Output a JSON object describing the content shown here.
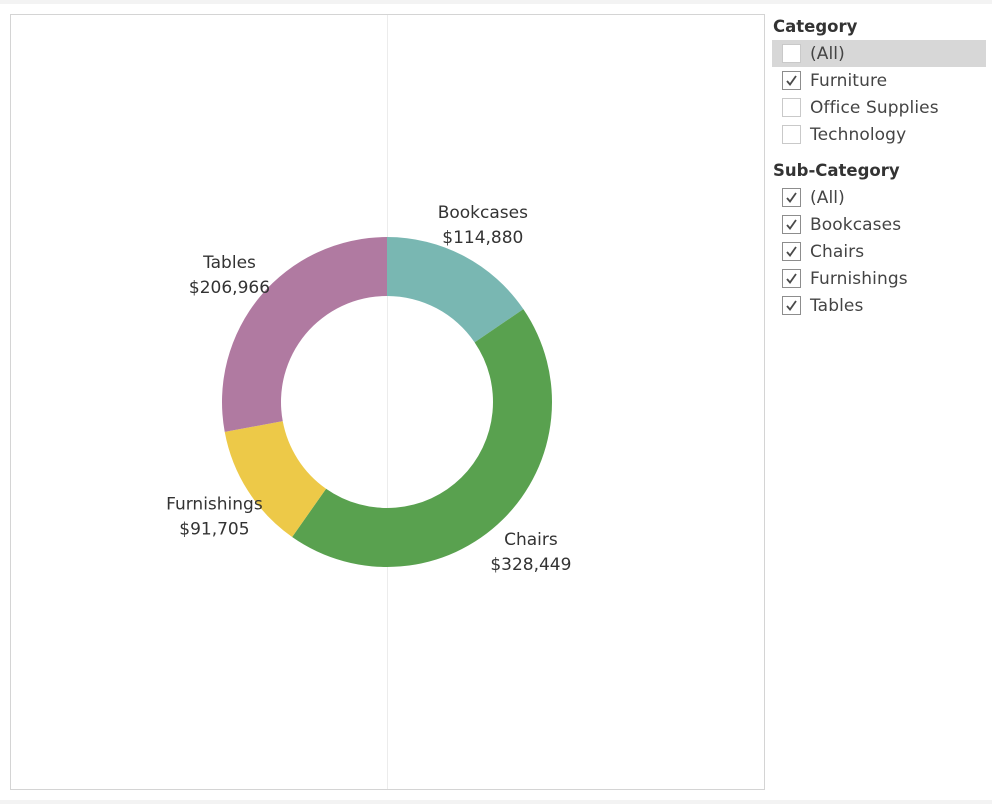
{
  "chart_data": {
    "type": "pie",
    "variant": "donut",
    "slices": [
      {
        "label": "Bookcases",
        "value": 114880,
        "value_label": "$114,880",
        "color": "#79B7B2"
      },
      {
        "label": "Chairs",
        "value": 328449,
        "value_label": "$328,449",
        "color": "#59A14F"
      },
      {
        "label": "Furnishings",
        "value": 91705,
        "value_label": "$91,705",
        "color": "#EDC948"
      },
      {
        "label": "Tables",
        "value": 206966,
        "value_label": "$206,966",
        "color": "#B07AA1"
      }
    ],
    "legend": "none"
  },
  "filters": {
    "category": {
      "title": "Category",
      "items": [
        {
          "label": "(All)",
          "checked": false,
          "highlighted": true
        },
        {
          "label": "Furniture",
          "checked": true,
          "highlighted": false
        },
        {
          "label": "Office Supplies",
          "checked": false,
          "highlighted": false
        },
        {
          "label": "Technology",
          "checked": false,
          "highlighted": false
        }
      ]
    },
    "sub_category": {
      "title": "Sub-Category",
      "items": [
        {
          "label": "(All)",
          "checked": true,
          "highlighted": false
        },
        {
          "label": "Bookcases",
          "checked": true,
          "highlighted": false
        },
        {
          "label": "Chairs",
          "checked": true,
          "highlighted": false
        },
        {
          "label": "Furnishings",
          "checked": true,
          "highlighted": false
        },
        {
          "label": "Tables",
          "checked": true,
          "highlighted": false
        }
      ]
    }
  }
}
